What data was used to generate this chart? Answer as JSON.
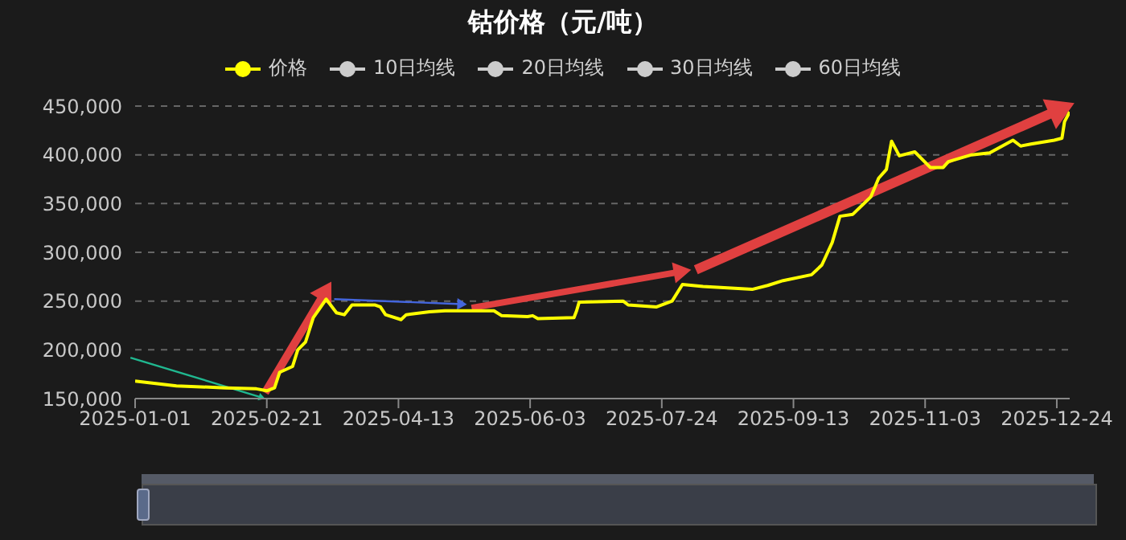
{
  "chart_data": {
    "type": "line",
    "title": "钴价格（元/吨）",
    "legend": "top",
    "grid": "y",
    "marker": "none",
    "x": [
      "2025-01-01",
      "2025-01-07",
      "2025-01-17",
      "2025-02-05",
      "2025-02-17",
      "2025-02-21",
      "2025-02-24",
      "2025-02-26",
      "2025-03-03",
      "2025-03-05",
      "2025-03-08",
      "2025-03-11",
      "2025-03-16",
      "2025-03-20",
      "2025-03-23",
      "2025-03-26",
      "2025-04-04",
      "2025-04-06",
      "2025-04-08",
      "2025-04-14",
      "2025-04-16",
      "2025-04-25",
      "2025-05-01",
      "2025-05-20",
      "2025-05-23",
      "2025-06-02",
      "2025-06-04",
      "2025-06-06",
      "2025-06-20",
      "2025-06-21",
      "2025-06-22",
      "2025-07-09",
      "2025-07-11",
      "2025-07-22",
      "2025-07-28",
      "2025-08-01",
      "2025-08-09",
      "2025-08-28",
      "2025-09-03",
      "2025-09-09",
      "2025-09-20",
      "2025-09-24",
      "2025-09-28",
      "2025-10-01",
      "2025-10-06",
      "2025-10-13",
      "2025-10-16",
      "2025-10-19",
      "2025-10-21",
      "2025-10-24",
      "2025-10-30",
      "2025-11-05",
      "2025-11-10",
      "2025-11-12",
      "2025-11-21",
      "2025-11-28",
      "2025-12-07",
      "2025-12-10",
      "2025-12-14",
      "2025-12-23",
      "2025-12-26",
      "2025-12-27",
      "2025-12-29"
    ],
    "series": [
      {
        "color": "#ffff00",
        "name": "价格",
        "values": [
          168000,
          166000,
          163000,
          161000,
          160000,
          158000,
          161000,
          177000,
          183000,
          200000,
          208000,
          233000,
          252000,
          238000,
          236000,
          246000,
          246000,
          244000,
          236000,
          231000,
          236000,
          239000,
          240000,
          240000,
          235000,
          234000,
          235000,
          232000,
          233000,
          240000,
          249000,
          250000,
          246000,
          244000,
          250000,
          267000,
          265000,
          262000,
          266000,
          271000,
          277000,
          287000,
          310000,
          337000,
          339000,
          357000,
          376000,
          385000,
          414000,
          399000,
          403000,
          387000,
          387000,
          393000,
          400000,
          402000,
          415000,
          409000,
          411000,
          415000,
          417000,
          434000,
          444000
        ]
      }
    ],
    "annotations": [
      "10日均线",
      "20日均线",
      "30日均线",
      "60日均线"
    ],
    "xlim": [
      "2025-01-01",
      "2025-12-29"
    ],
    "xticks": [
      "2025-01-01",
      "2025-02-21",
      "2025-04-13",
      "2025-06-03",
      "2025-07-24",
      "2025-09-13",
      "2025-11-03",
      "2025-12-24"
    ],
    "ylim": [
      150000,
      450000
    ],
    "yticks": [
      {
        "value": 150000,
        "label": "150,000"
      },
      {
        "value": 200000,
        "label": "200,000"
      },
      {
        "value": 250000,
        "label": "250,000"
      },
      {
        "value": 300000,
        "label": "300,000"
      },
      {
        "value": 350000,
        "label": "350,000"
      },
      {
        "value": 400000,
        "label": "400,000"
      },
      {
        "value": 450000,
        "label": "450,000"
      }
    ]
  }
}
